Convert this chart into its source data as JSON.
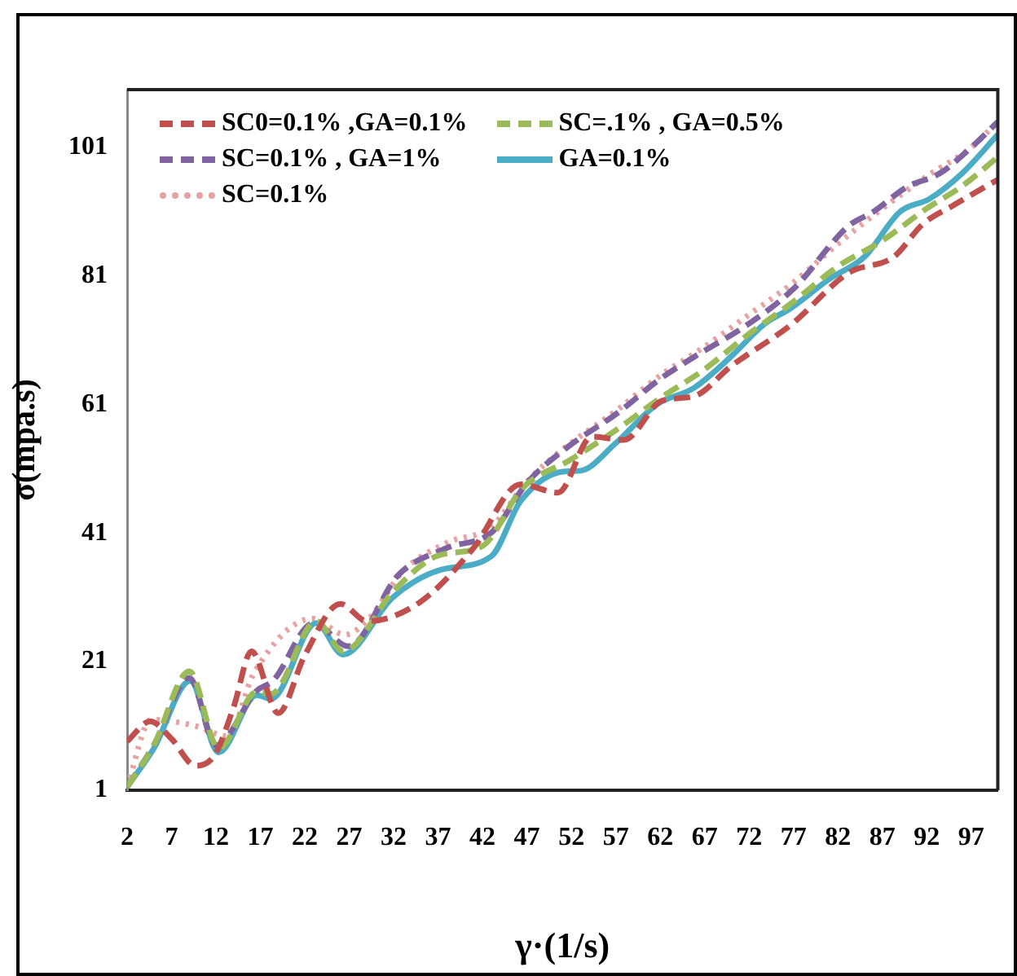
{
  "chart_data": {
    "type": "line",
    "xlabel": "γ·(1/s)",
    "ylabel": "σ(mpa.s)",
    "xlim": [
      2,
      100
    ],
    "xticks": [
      2,
      7,
      12,
      17,
      22,
      27,
      32,
      37,
      42,
      47,
      52,
      57,
      62,
      67,
      72,
      77,
      82,
      87,
      92,
      97
    ],
    "ylim": [
      1,
      110
    ],
    "yticks": [
      1,
      21,
      41,
      61,
      81,
      101
    ],
    "grid": false,
    "legend": "top left",
    "marker": "none",
    "series": [
      {
        "name": "SC0=0.1% ,GA=0.1%",
        "color": "#c0504d",
        "line_style": "dashed",
        "x": [
          2,
          4.6,
          7,
          9.7,
          11.9,
          14,
          16,
          19,
          22,
          26,
          29,
          35,
          41,
          46.3,
          50.5,
          54.3,
          57.9,
          62.2,
          65.8,
          70,
          76.8,
          83.2,
          88.3,
          91.5,
          95,
          100
        ],
        "values": [
          8.6,
          11.7,
          9,
          4.8,
          6.6,
          14,
          22.6,
          13,
          22,
          30,
          27.3,
          30.3,
          38.7,
          48.6,
          47.3,
          56,
          55.5,
          61.6,
          62.3,
          67,
          73.5,
          81.5,
          84,
          89,
          92,
          96
        ]
      },
      {
        "name": "SC=.1% , GA=0.5%",
        "color": "#9bbb59",
        "line_style": "dashed",
        "x": [
          2,
          5,
          9,
          12.3,
          16.6,
          18.2,
          23.3,
          26.3,
          32,
          37,
          42,
          46.5,
          52,
          57,
          62,
          67,
          72,
          77,
          82,
          87,
          92,
          96,
          100
        ],
        "values": [
          1.5,
          8,
          19.5,
          7.5,
          16.3,
          16,
          27.3,
          22.6,
          32,
          37.5,
          39,
          48,
          52.5,
          57,
          62,
          66.5,
          72,
          77,
          82.5,
          86.5,
          91.5,
          95,
          99.5
        ]
      },
      {
        "name": "SC=0.1% , GA=1%",
        "color": "#8064a2",
        "line_style": "dashed",
        "x": [
          2,
          5,
          9,
          12,
          16.6,
          18.4,
          23,
          26.9,
          32.6,
          38,
          43.1,
          47,
          51.2,
          57.3,
          62,
          65.8,
          71.9,
          77,
          83.2,
          86,
          89.7,
          93.5,
          97,
          100
        ],
        "values": [
          1.5,
          8,
          18.5,
          8,
          16.5,
          18,
          27,
          23.4,
          34.6,
          38.7,
          41.2,
          48.8,
          54,
          59.8,
          65,
          68.4,
          73.5,
          79,
          88.8,
          91,
          94.8,
          97,
          101,
          105
        ]
      },
      {
        "name": "GA=0.1%",
        "color": "#4bacc6",
        "line_style": "solid",
        "x": [
          2,
          5,
          9.1,
          12.3,
          16.6,
          18.2,
          23.3,
          26.3,
          31.9,
          37.3,
          43,
          46.3,
          51.2,
          53,
          57,
          61.6,
          65.8,
          70,
          73.7,
          76.7,
          81,
          85,
          89,
          92.3,
          96,
          100
        ],
        "values": [
          1.5,
          7.5,
          18,
          6.9,
          15.8,
          15.2,
          27,
          22.1,
          31,
          35.3,
          37.4,
          46,
          50.6,
          50.7,
          55,
          61,
          63.6,
          68.5,
          73.5,
          76,
          80.5,
          84,
          91,
          93,
          97,
          103
        ]
      },
      {
        "name": "SC=0.1%",
        "color": "#e6a3a1",
        "line_style": "dotted",
        "x": [
          2,
          4.7,
          9.7,
          13.3,
          16.3,
          22.9,
          26.5,
          29.4,
          33,
          38,
          43,
          47,
          51,
          57,
          62,
          67,
          72,
          77,
          82,
          87,
          92,
          97,
          100
        ],
        "values": [
          1.5,
          12,
          11,
          9.4,
          19.3,
          27.7,
          25.2,
          28,
          35,
          39.5,
          42,
          49,
          54,
          60,
          65.5,
          70,
          75,
          80,
          86,
          91.5,
          96.5,
          101,
          105
        ]
      }
    ]
  }
}
